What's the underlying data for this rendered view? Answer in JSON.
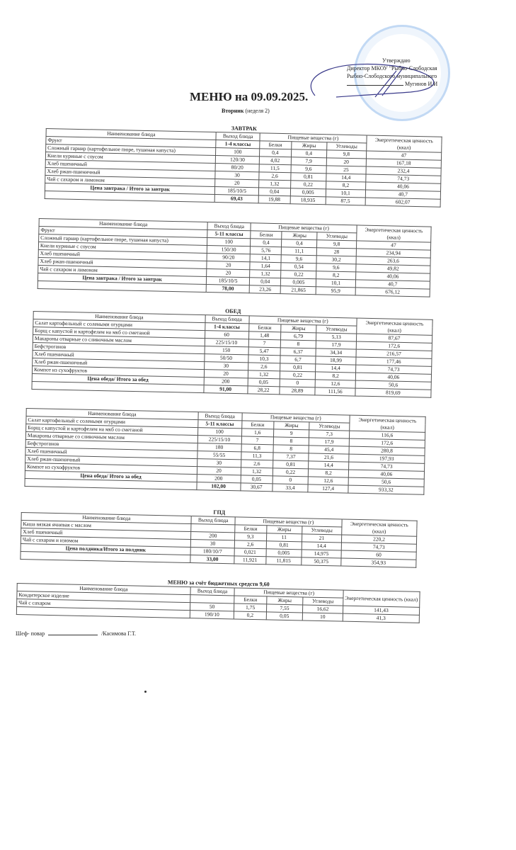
{
  "header": {
    "title": "МЕНЮ на 09.09.2025.",
    "day": "Вторник",
    "week": "(неделя 2)",
    "approval": [
      "Утверждаю",
      "Директор МКОУ \"Рыбно-Слободская",
      "Рыбно-Слободского муниципального",
      "Мугинов И.И"
    ]
  },
  "columns": {
    "name": "Наименование блюда",
    "output": "Выход блюда",
    "nutrients": "Пищевые вещества (г)",
    "protein": "Белки",
    "fat": "Жиры",
    "carbs": "Углеводы",
    "energy": "Энергетическая ценность (ккал)"
  },
  "tables": [
    {
      "title": "ЗАВТРАК",
      "class_label": "1-4 классы",
      "names": [
        "Фрукт",
        "Сложный гарнир (картофельное пюре, тушеная капуста)",
        "Кнели куриные с соусом",
        "Хлеб пшеничный",
        "Хлеб ржан-пшеничный",
        "Чай с сахаром и лимоном",
        "Цена завтрака / Итого за завтрак"
      ],
      "rows": [
        [
          "100",
          "0,4",
          "0,4",
          "9,8",
          "47"
        ],
        [
          "120/30",
          "4,02",
          "7,9",
          "20",
          "167,18"
        ],
        [
          "80/20",
          "11,5",
          "9,6",
          "25",
          "232,4"
        ],
        [
          "30",
          "2,6",
          "0,81",
          "14,4",
          "74,73"
        ],
        [
          "20",
          "1,32",
          "0,22",
          "8,2",
          "40,06"
        ],
        [
          "185/10/5",
          "0,04",
          "0,005",
          "10,1",
          "40,7"
        ],
        [
          "69,43",
          "19,88",
          "18,935",
          "87,5",
          "602,07"
        ]
      ]
    },
    {
      "title": "",
      "class_label": "5-11 классы",
      "names": [
        "Фрукт",
        "Сложный гарнир (картофельное пюре, тушеная капуста)",
        "Кнели куриные с соусом",
        "Хлеб пшеничный",
        "Хлеб ржан-пшеничный",
        "Чай с сахаром и лимоном",
        "Цена завтрака / Итого за завтрак"
      ],
      "rows": [
        [
          "100",
          "0,4",
          "0,4",
          "9,8",
          "47"
        ],
        [
          "150/30",
          "5,76",
          "11,1",
          "28",
          "234,94"
        ],
        [
          "90/20",
          "14,1",
          "9,6",
          "30,2",
          "263,6"
        ],
        [
          "20",
          "1,64",
          "0,54",
          "9,6",
          "49,82"
        ],
        [
          "20",
          "1,32",
          "0,22",
          "8,2",
          "40,06"
        ],
        [
          "185/10/5",
          "0,04",
          "0,005",
          "10,1",
          "40,7"
        ],
        [
          "78,00",
          "23,26",
          "21,865",
          "95,9",
          "676,12"
        ]
      ]
    },
    {
      "title": "ОБЕД",
      "class_label": "1-4 классы",
      "names": [
        "Салат картофельный с солеными огурцами",
        "Борщ с капустой и картофелем на мкб со сметаной",
        "Макароны отварные со сливочным маслом",
        "Бефстроганов",
        "Хлеб пшеничный",
        "Хлеб ржан-пшеничный",
        "Компот из сухофруктов",
        "Цена обеда/ Итого за обед"
      ],
      "rows": [
        [
          "60",
          "1,48",
          "6,79",
          "5,13",
          "87,67"
        ],
        [
          "225/15/10",
          "7",
          "8",
          "17,9",
          "172,6"
        ],
        [
          "150",
          "5,47",
          "6,37",
          "34,34",
          "216,57"
        ],
        [
          "50/50",
          "10,3",
          "6,7",
          "18,99",
          "177,46"
        ],
        [
          "30",
          "2,6",
          "0,81",
          "14,4",
          "74,73"
        ],
        [
          "20",
          "1,32",
          "0,22",
          "8,2",
          "40,06"
        ],
        [
          "200",
          "0,05",
          "0",
          "12,6",
          "50,6"
        ],
        [
          "91,00",
          "28,22",
          "28,89",
          "111,56",
          "819,69"
        ]
      ]
    },
    {
      "title": "",
      "class_label": "5-11 классы",
      "names": [
        "Салат картофельный с солеными огурцами",
        "Борщ с капустой и картофелем на мкб со сметаной",
        "Макароны отварные со сливочным маслом",
        "Бефстроганов",
        "Хлеб пшеничный",
        "Хлеб ржан-пшеничный",
        "Компот из сухофруктов",
        "Цена обеда/ Итого за обед"
      ],
      "rows": [
        [
          "100",
          "1,6",
          "9",
          "7,3",
          "116,6"
        ],
        [
          "225/15/10",
          "7",
          "8",
          "17,9",
          "172,6"
        ],
        [
          "180",
          "6,8",
          "8",
          "45,4",
          "280,8"
        ],
        [
          "55/55",
          "11,3",
          "7,37",
          "21,6",
          "197,93"
        ],
        [
          "30",
          "2,6",
          "0,81",
          "14,4",
          "74,73"
        ],
        [
          "20",
          "1,32",
          "0,22",
          "8,2",
          "40,06"
        ],
        [
          "200",
          "0,05",
          "0",
          "12,6",
          "50,6"
        ],
        [
          "102,00",
          "30,67",
          "33,4",
          "127,4",
          "933,32"
        ]
      ]
    },
    {
      "title": "ГПД",
      "class_label": "",
      "names": [
        "Каша вязкая ячневая с маслом",
        "Хлеб пшеничный",
        "Чай с сахаром и изюмом",
        "Цена полдника/Итого за полдник"
      ],
      "rows": [
        [
          "200",
          "9,3",
          "11",
          "21",
          "220,2"
        ],
        [
          "30",
          "2,6",
          "0,81",
          "14,4",
          "74,73"
        ],
        [
          "180/10/7",
          "0,021",
          "0,005",
          "14,975",
          "60"
        ],
        [
          "33,00",
          "11,921",
          "11,815",
          "50,375",
          "354,93"
        ]
      ]
    },
    {
      "title": "МЕНЮ за счёт бюджетных средств 9,60",
      "class_label": "",
      "names": [
        "Кондитерское изделие",
        "Чай с сахаром"
      ],
      "rows": [
        [
          "50",
          "1,75",
          "7,55",
          "16,62",
          "141,43"
        ],
        [
          "190/10",
          "0,2",
          "0,05",
          "10",
          "41,3"
        ]
      ]
    }
  ],
  "footer": {
    "label": "Шеф- повар",
    "name": "/Касимова Г.Т."
  },
  "colors": {
    "stamp": "#7aaae6",
    "signature": "#3a3a8a"
  }
}
